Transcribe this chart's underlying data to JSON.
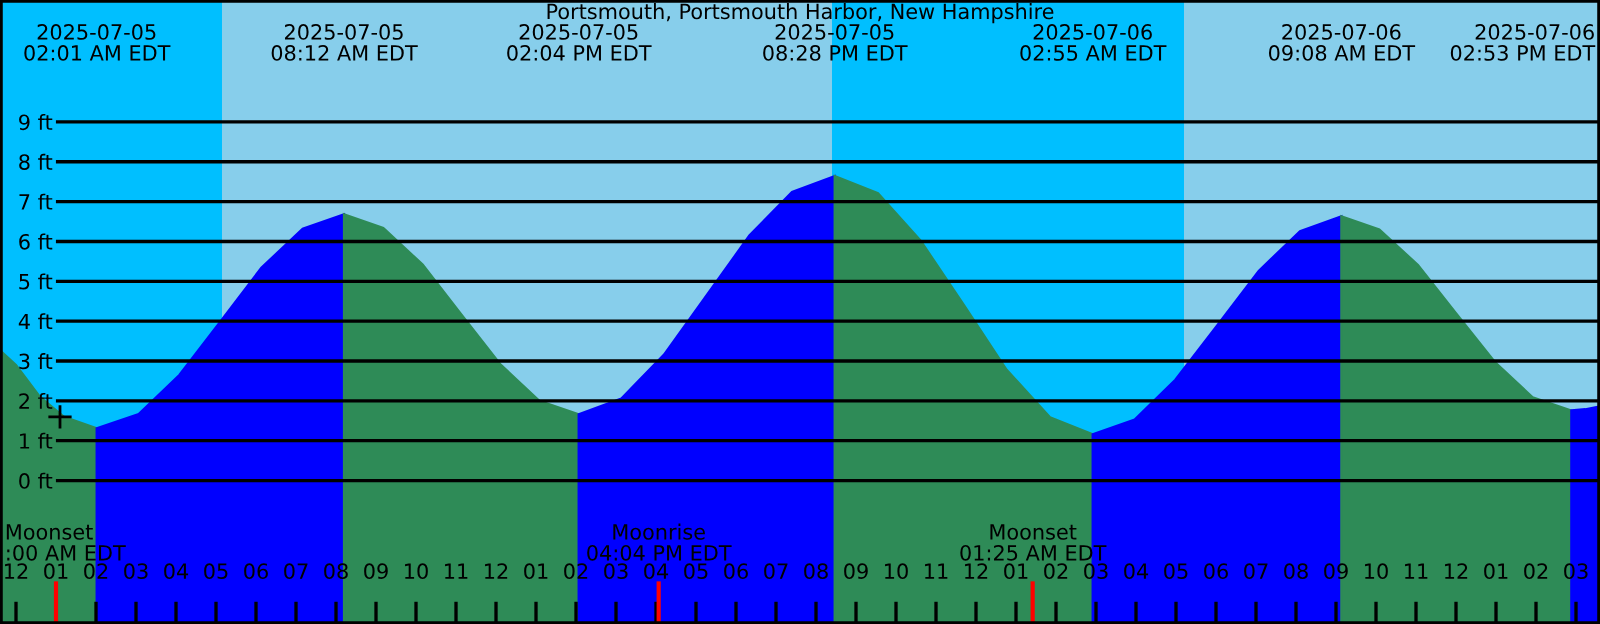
{
  "chart_data": {
    "type": "area",
    "title": "Portsmouth, Portsmouth Harbor, New Hampshire",
    "xlim": [
      "2025-07-04T23:36",
      "2025-07-06T15:36"
    ],
    "ylim": [
      -3.6,
      12.06
    ],
    "xticks": [
      {
        "value": "2025-07-05T00:00",
        "label": "12"
      },
      {
        "value": "2025-07-05T01:00",
        "label": "01"
      },
      {
        "value": "2025-07-05T02:00",
        "label": "02"
      },
      {
        "value": "2025-07-05T03:00",
        "label": "03"
      },
      {
        "value": "2025-07-05T04:00",
        "label": "04"
      },
      {
        "value": "2025-07-05T05:00",
        "label": "05"
      },
      {
        "value": "2025-07-05T06:00",
        "label": "06"
      },
      {
        "value": "2025-07-05T07:00",
        "label": "07"
      },
      {
        "value": "2025-07-05T08:00",
        "label": "08"
      },
      {
        "value": "2025-07-05T09:00",
        "label": "09"
      },
      {
        "value": "2025-07-05T10:00",
        "label": "10"
      },
      {
        "value": "2025-07-05T11:00",
        "label": "11"
      },
      {
        "value": "2025-07-05T12:00",
        "label": "12"
      },
      {
        "value": "2025-07-05T13:00",
        "label": "01"
      },
      {
        "value": "2025-07-05T14:00",
        "label": "02"
      },
      {
        "value": "2025-07-05T15:00",
        "label": "03"
      },
      {
        "value": "2025-07-05T16:00",
        "label": "04"
      },
      {
        "value": "2025-07-05T17:00",
        "label": "05"
      },
      {
        "value": "2025-07-05T18:00",
        "label": "06"
      },
      {
        "value": "2025-07-05T19:00",
        "label": "07"
      },
      {
        "value": "2025-07-05T20:00",
        "label": "08"
      },
      {
        "value": "2025-07-05T21:00",
        "label": "09"
      },
      {
        "value": "2025-07-05T22:00",
        "label": "10"
      },
      {
        "value": "2025-07-05T23:00",
        "label": "11"
      },
      {
        "value": "2025-07-06T00:00",
        "label": "12"
      },
      {
        "value": "2025-07-06T01:00",
        "label": "01"
      },
      {
        "value": "2025-07-06T02:00",
        "label": "02"
      },
      {
        "value": "2025-07-06T03:00",
        "label": "03"
      },
      {
        "value": "2025-07-06T04:00",
        "label": "04"
      },
      {
        "value": "2025-07-06T05:00",
        "label": "05"
      },
      {
        "value": "2025-07-06T06:00",
        "label": "06"
      },
      {
        "value": "2025-07-06T07:00",
        "label": "07"
      },
      {
        "value": "2025-07-06T08:00",
        "label": "08"
      },
      {
        "value": "2025-07-06T09:00",
        "label": "09"
      },
      {
        "value": "2025-07-06T10:00",
        "label": "10"
      },
      {
        "value": "2025-07-06T11:00",
        "label": "11"
      },
      {
        "value": "2025-07-06T12:00",
        "label": "12"
      },
      {
        "value": "2025-07-06T13:00",
        "label": "01"
      },
      {
        "value": "2025-07-06T14:00",
        "label": "02"
      },
      {
        "value": "2025-07-06T15:00",
        "label": "03"
      }
    ],
    "yticks": [
      {
        "value": 0,
        "label": "0 ft"
      },
      {
        "value": 1,
        "label": "1 ft"
      },
      {
        "value": 2,
        "label": "2 ft"
      },
      {
        "value": 3,
        "label": "3 ft"
      },
      {
        "value": 4,
        "label": "4 ft"
      },
      {
        "value": 5,
        "label": "5 ft"
      },
      {
        "value": 6,
        "label": "6 ft"
      },
      {
        "value": 7,
        "label": "7 ft"
      },
      {
        "value": 8,
        "label": "8 ft"
      },
      {
        "value": 9,
        "label": "9 ft"
      }
    ],
    "grid": "y",
    "bands": [
      {
        "axis": "x",
        "from": "2025-07-04T23:36",
        "to": "2025-07-05T05:09",
        "color": "#00bfff"
      },
      {
        "axis": "x",
        "from": "2025-07-05T05:09",
        "to": "2025-07-05T20:24",
        "color": "#87ceeb"
      },
      {
        "axis": "x",
        "from": "2025-07-05T20:24",
        "to": "2025-07-06T05:12",
        "color": "#00bfff"
      },
      {
        "axis": "x",
        "from": "2025-07-06T05:12",
        "to": "2025-07-06T15:36",
        "color": "#87ceeb"
      }
    ],
    "series": [
      {
        "color": "#2e8b57",
        "x": [
          "2025-07-04T23:36",
          "2025-07-05T00:00",
          "2025-07-05T00:36",
          "2025-07-05T01:12",
          "2025-07-05T02:01"
        ],
        "values": [
          3.27,
          2.9,
          2.1,
          1.6,
          1.31
        ]
      },
      {
        "color": "#0000ff",
        "x": [
          "2025-07-05T02:01",
          "2025-07-05T03:04",
          "2025-07-05T04:05",
          "2025-07-05T05:07",
          "2025-07-05T06:08",
          "2025-07-05T07:10",
          "2025-07-05T08:12"
        ],
        "values": [
          1.31,
          1.67,
          2.65,
          4.0,
          5.34,
          6.32,
          6.68
        ]
      },
      {
        "color": "#2e8b57",
        "x": [
          "2025-07-05T08:12",
          "2025-07-05T09:11",
          "2025-07-05T10:10",
          "2025-07-05T11:08",
          "2025-07-05T12:07",
          "2025-07-05T13:05",
          "2025-07-05T14:04"
        ],
        "values": [
          6.68,
          6.34,
          5.42,
          4.17,
          2.91,
          2.0,
          1.66
        ]
      },
      {
        "color": "#0000ff",
        "x": [
          "2025-07-05T14:04",
          "2025-07-05T15:08",
          "2025-07-05T16:12",
          "2025-07-05T17:16",
          "2025-07-05T18:20",
          "2025-07-05T19:24",
          "2025-07-05T20:28"
        ],
        "values": [
          1.66,
          2.06,
          3.16,
          4.65,
          6.15,
          7.24,
          7.64
        ]
      },
      {
        "color": "#2e8b57",
        "x": [
          "2025-07-05T20:28",
          "2025-07-05T21:33",
          "2025-07-05T22:37",
          "2025-07-05T23:42",
          "2025-07-06T00:46",
          "2025-07-06T01:51",
          "2025-07-06T02:55"
        ],
        "values": [
          7.64,
          7.21,
          6.02,
          4.4,
          2.78,
          1.59,
          1.16
        ]
      },
      {
        "color": "#0000ff",
        "x": [
          "2025-07-06T02:55",
          "2025-07-06T03:58",
          "2025-07-06T04:59",
          "2025-07-06T06:02",
          "2025-07-06T07:04",
          "2025-07-06T08:06",
          "2025-07-06T09:08"
        ],
        "values": [
          1.16,
          1.53,
          2.53,
          3.9,
          5.26,
          6.26,
          6.63
        ]
      },
      {
        "color": "#2e8b57",
        "x": [
          "2025-07-06T09:08",
          "2025-07-06T10:05",
          "2025-07-06T11:03",
          "2025-07-06T12:00",
          "2025-07-06T12:58",
          "2025-07-06T13:55",
          "2025-07-06T14:53"
        ],
        "values": [
          6.63,
          6.3,
          5.41,
          4.2,
          2.98,
          2.09,
          1.76
        ]
      },
      {
        "color": "#0000ff",
        "x": [
          "2025-07-06T14:53",
          "2025-07-06T15:14",
          "2025-07-06T15:36"
        ],
        "values": [
          1.76,
          1.79,
          1.86
        ]
      },
      {
        "type": "scatter",
        "color": "#000000",
        "marker": "cross",
        "x": [
          "2025-07-05T01:06"
        ],
        "values": [
          1.6
        ]
      }
    ],
    "ref_lines": [
      {
        "axis": "x",
        "value": "2025-07-05T01:00",
        "label": "Moonset\n:00 AM EDT",
        "color": "#ff0000"
      },
      {
        "axis": "x",
        "value": "2025-07-05T16:04",
        "label": "Moonrise\n04:04 PM EDT",
        "color": "#ff0000"
      },
      {
        "axis": "x",
        "value": "2025-07-06T01:25",
        "label": "Moonset\n01:25 AM EDT",
        "color": "#ff0000"
      }
    ],
    "annotations": [
      "2025-07-05\n02:01 AM EDT",
      "2025-07-05\n08:12 AM EDT",
      "2025-07-05\n02:04 PM EDT",
      "2025-07-05\n08:28 PM EDT",
      "2025-07-06\n02:55 AM EDT",
      "2025-07-06\n09:08 AM EDT",
      "2025-07-06\n02:53 PM EDT"
    ]
  }
}
